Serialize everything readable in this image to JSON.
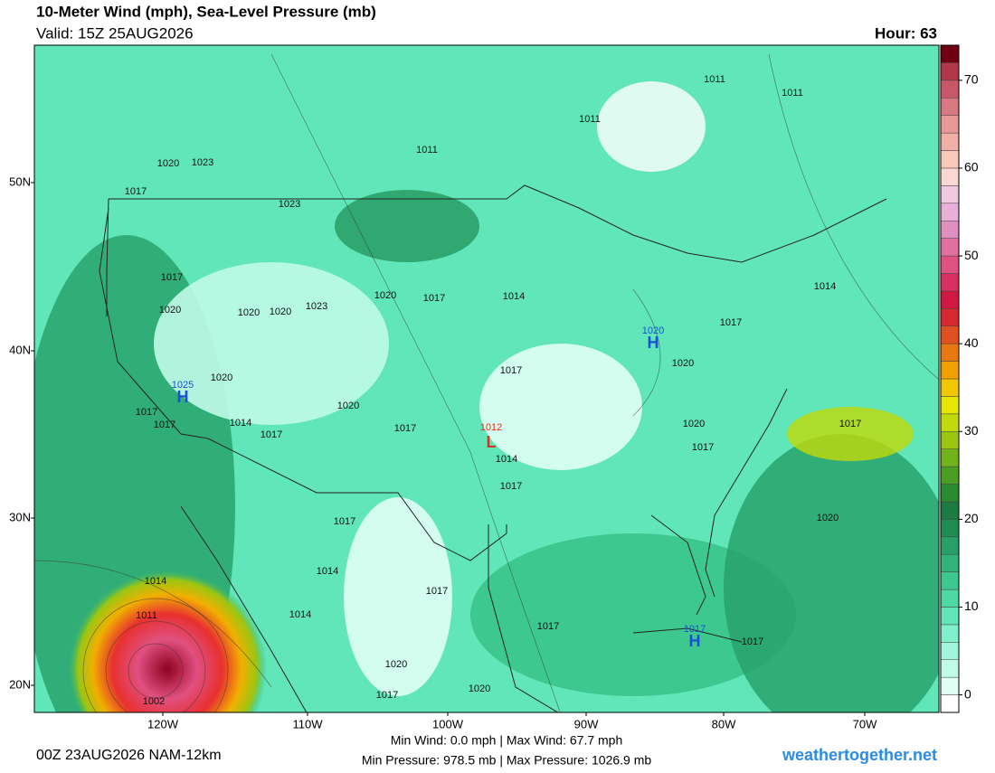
{
  "header": {
    "title": "10-Meter Wind (mph), Sea-Level Pressure (mb)",
    "valid": "Valid: 15Z 25AUG2026",
    "hour": "Hour: 63"
  },
  "lat_labels": [
    "50N",
    "40N",
    "30N",
    "20N"
  ],
  "lon_labels": [
    "120W",
    "110W",
    "100W",
    "90W",
    "80W",
    "70W"
  ],
  "isobar_labels": [
    1011,
    1011,
    1011,
    1011,
    1020,
    1023,
    1017,
    1023,
    1017,
    1020,
    1020,
    1020,
    1023,
    1020,
    1017,
    1014,
    1014,
    1017,
    1020,
    1017,
    1020,
    1017,
    1017,
    1014,
    1017,
    1020,
    1017,
    1014,
    1017,
    1020,
    1017,
    1017,
    1020,
    1017,
    1014,
    1017,
    1014,
    1017,
    1017,
    1014,
    1011,
    1002,
    1020,
    1017,
    1020
  ],
  "highs": [
    {
      "symbol": "H",
      "pressure": 1020
    },
    {
      "symbol": "H",
      "pressure": 1025
    },
    {
      "symbol": "H",
      "pressure": 1017
    }
  ],
  "lows": [
    {
      "symbol": "L",
      "pressure": 1012
    }
  ],
  "colorbar": {
    "lim": [
      -2,
      74
    ],
    "ticks": [
      0,
      10,
      20,
      30,
      40,
      50,
      60,
      70
    ],
    "colors": [
      "#ffffff",
      "#e0fff5",
      "#c0fbe8",
      "#a0f5da",
      "#80efcb",
      "#60e6b8",
      "#4cd9a4",
      "#3cc88f",
      "#30b47a",
      "#26a066",
      "#1e8c53",
      "#1c7a43",
      "#2a8a2e",
      "#4a9e22",
      "#72b21a",
      "#9ac612",
      "#c2da0a",
      "#e6e600",
      "#f0c800",
      "#f0a000",
      "#e87810",
      "#e05020",
      "#d82830",
      "#d01840",
      "#d83060",
      "#e05080",
      "#e070a0",
      "#e090c0",
      "#e8b0d8",
      "#f0c8e0",
      "#f8d8d0",
      "#f8c8b8",
      "#f0b0a8",
      "#e89898",
      "#d87880",
      "#c85868",
      "#b03848",
      "#700010"
    ]
  },
  "footer": {
    "run": "00Z 23AUG2026 NAM-12km",
    "wind": "Min Wind:  0.0 mph | Max Wind:  67.7 mph",
    "pressure": "Min Pressure: 978.5 mb | Max Pressure: 1026.9 mb",
    "site": "weathertogether.net"
  }
}
